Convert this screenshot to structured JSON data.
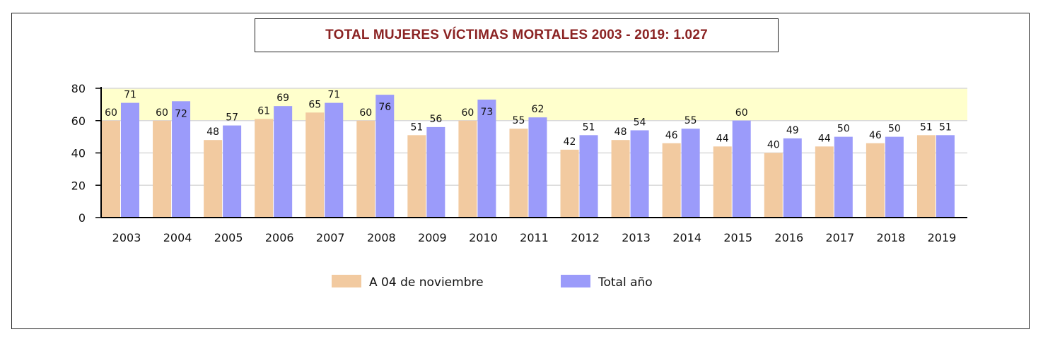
{
  "title": "TOTAL MUJERES VÍCTIMAS MORTALES 2003 - 2019: 1.027",
  "colors": {
    "series_a": "#f2caa0",
    "series_b": "#9b9bfa",
    "plot_band": "#ffffcc",
    "title": "#8b2323",
    "axis": "#000000"
  },
  "chart_data": {
    "type": "bar",
    "title": "TOTAL MUJERES VÍCTIMAS MORTALES 2003 - 2019: 1.027",
    "xlabel": "",
    "ylabel": "",
    "ylim": [
      0,
      80
    ],
    "yticks": [
      0,
      20,
      40,
      60,
      80
    ],
    "grid": true,
    "legend_position": "bottom",
    "categories": [
      "2003",
      "2004",
      "2005",
      "2006",
      "2007",
      "2008",
      "2009",
      "2010",
      "2011",
      "2012",
      "2013",
      "2014",
      "2015",
      "2016",
      "2017",
      "2018",
      "2019"
    ],
    "series": [
      {
        "name": "A 04 de noviembre",
        "values": [
          60,
          60,
          48,
          61,
          65,
          60,
          51,
          60,
          55,
          42,
          48,
          46,
          44,
          40,
          44,
          46,
          51
        ]
      },
      {
        "name": "Total año",
        "values": [
          71,
          72,
          57,
          69,
          71,
          76,
          56,
          73,
          62,
          51,
          54,
          55,
          60,
          49,
          50,
          50,
          51
        ]
      }
    ]
  }
}
